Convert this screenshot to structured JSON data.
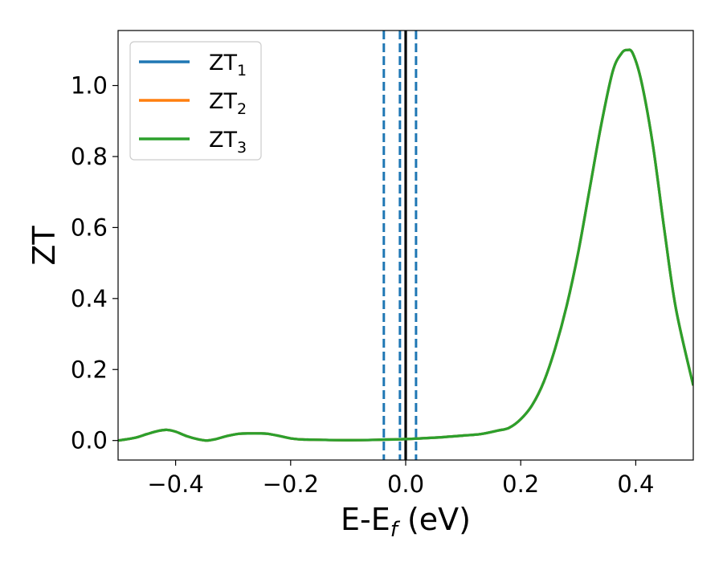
{
  "chart_data": {
    "type": "line",
    "title": "",
    "xlabel_main": "E-E",
    "xlabel_sub": "f",
    "xlabel_unit": "(eV)",
    "ylabel": "ZT",
    "xlim": [
      -0.5,
      0.5
    ],
    "ylim": [
      -0.055,
      1.155
    ],
    "grid": false,
    "legend_position": "upper-left",
    "x_ticks": [
      {
        "value": -0.4,
        "label": "−0.4"
      },
      {
        "value": -0.2,
        "label": "−0.2"
      },
      {
        "value": 0.0,
        "label": "0.0"
      },
      {
        "value": 0.2,
        "label": "0.2"
      },
      {
        "value": 0.4,
        "label": "0.4"
      }
    ],
    "y_ticks": [
      {
        "value": 0.0,
        "label": "0.0"
      },
      {
        "value": 0.2,
        "label": "0.2"
      },
      {
        "value": 0.4,
        "label": "0.4"
      },
      {
        "value": 0.6,
        "label": "0.6"
      },
      {
        "value": 0.8,
        "label": "0.8"
      },
      {
        "value": 1.0,
        "label": "1.0"
      }
    ],
    "x": [
      -0.5,
      -0.47,
      -0.45,
      -0.43,
      -0.415,
      -0.4,
      -0.38,
      -0.36,
      -0.345,
      -0.33,
      -0.31,
      -0.29,
      -0.27,
      -0.255,
      -0.24,
      -0.22,
      -0.2,
      -0.18,
      -0.15,
      -0.1,
      -0.05,
      0.0,
      0.05,
      0.1,
      0.13,
      0.16,
      0.18,
      0.2,
      0.22,
      0.24,
      0.26,
      0.28,
      0.3,
      0.32,
      0.34,
      0.36,
      0.375,
      0.385,
      0.395,
      0.41,
      0.43,
      0.45,
      0.47,
      0.5
    ],
    "series": [
      {
        "name_main": "ZT",
        "name_sub": "1",
        "color": "#1f77b4",
        "values": [
          0.0,
          0.008,
          0.018,
          0.027,
          0.03,
          0.025,
          0.012,
          0.003,
          0.0,
          0.004,
          0.013,
          0.019,
          0.02,
          0.02,
          0.019,
          0.013,
          0.006,
          0.003,
          0.002,
          0.001,
          0.002,
          0.004,
          0.008,
          0.014,
          0.018,
          0.028,
          0.036,
          0.06,
          0.1,
          0.165,
          0.26,
          0.38,
          0.53,
          0.71,
          0.89,
          1.04,
          1.09,
          1.1,
          1.09,
          1.01,
          0.83,
          0.59,
          0.37,
          0.155
        ]
      },
      {
        "name_main": "ZT",
        "name_sub": "2",
        "color": "#ff7f0e",
        "values": [
          0.0,
          0.008,
          0.018,
          0.027,
          0.03,
          0.025,
          0.012,
          0.003,
          0.0,
          0.004,
          0.013,
          0.019,
          0.02,
          0.02,
          0.019,
          0.013,
          0.006,
          0.003,
          0.002,
          0.001,
          0.002,
          0.004,
          0.008,
          0.014,
          0.018,
          0.028,
          0.036,
          0.06,
          0.1,
          0.165,
          0.26,
          0.38,
          0.53,
          0.71,
          0.89,
          1.04,
          1.09,
          1.1,
          1.09,
          1.01,
          0.83,
          0.59,
          0.37,
          0.155
        ]
      },
      {
        "name_main": "ZT",
        "name_sub": "3",
        "color": "#2ca02c",
        "values": [
          0.0,
          0.008,
          0.018,
          0.027,
          0.03,
          0.025,
          0.012,
          0.003,
          0.0,
          0.004,
          0.013,
          0.019,
          0.02,
          0.02,
          0.019,
          0.013,
          0.006,
          0.003,
          0.002,
          0.001,
          0.002,
          0.004,
          0.008,
          0.014,
          0.018,
          0.028,
          0.036,
          0.06,
          0.1,
          0.165,
          0.26,
          0.38,
          0.53,
          0.71,
          0.89,
          1.04,
          1.09,
          1.1,
          1.09,
          1.01,
          0.83,
          0.59,
          0.37,
          0.155
        ]
      }
    ],
    "vertical_lines": [
      {
        "x": -0.038,
        "style": "dashed",
        "color": "#1f77b4"
      },
      {
        "x": -0.01,
        "style": "dashed",
        "color": "#1f77b4"
      },
      {
        "x": 0.018,
        "style": "dashed",
        "color": "#1f77b4"
      },
      {
        "x": 0.0,
        "style": "solid",
        "color": "#000000"
      }
    ]
  }
}
